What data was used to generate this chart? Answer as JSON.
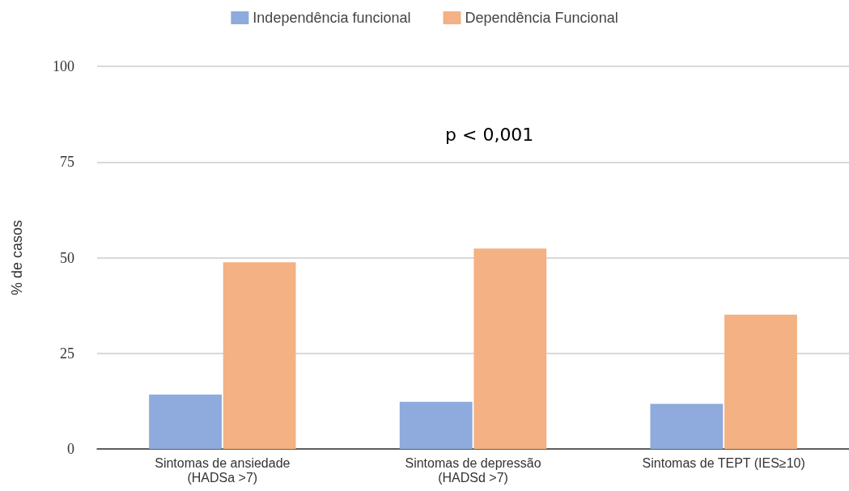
{
  "chart_data": {
    "type": "bar",
    "ylabel": "% de casos",
    "categories": [
      "Sintomas de ansiedade\n(HADSa >7)",
      "Sintomas de depressão\n(HADSd >7)",
      "Sintomas de TEPT (IES≥10)"
    ],
    "series": [
      {
        "name": "Independência funcional",
        "color": "#8faadc",
        "values": [
          14.2,
          12.3,
          11.8
        ]
      },
      {
        "name": "Dependência Funcional",
        "color": "#f4b183",
        "values": [
          48.8,
          52.4,
          35.1
        ]
      }
    ],
    "ylim": [
      0,
      100
    ],
    "yticks": [
      0,
      25,
      50,
      75,
      100
    ],
    "grid": "y",
    "legend": "top",
    "annotations": [
      "p < 0,001"
    ]
  }
}
